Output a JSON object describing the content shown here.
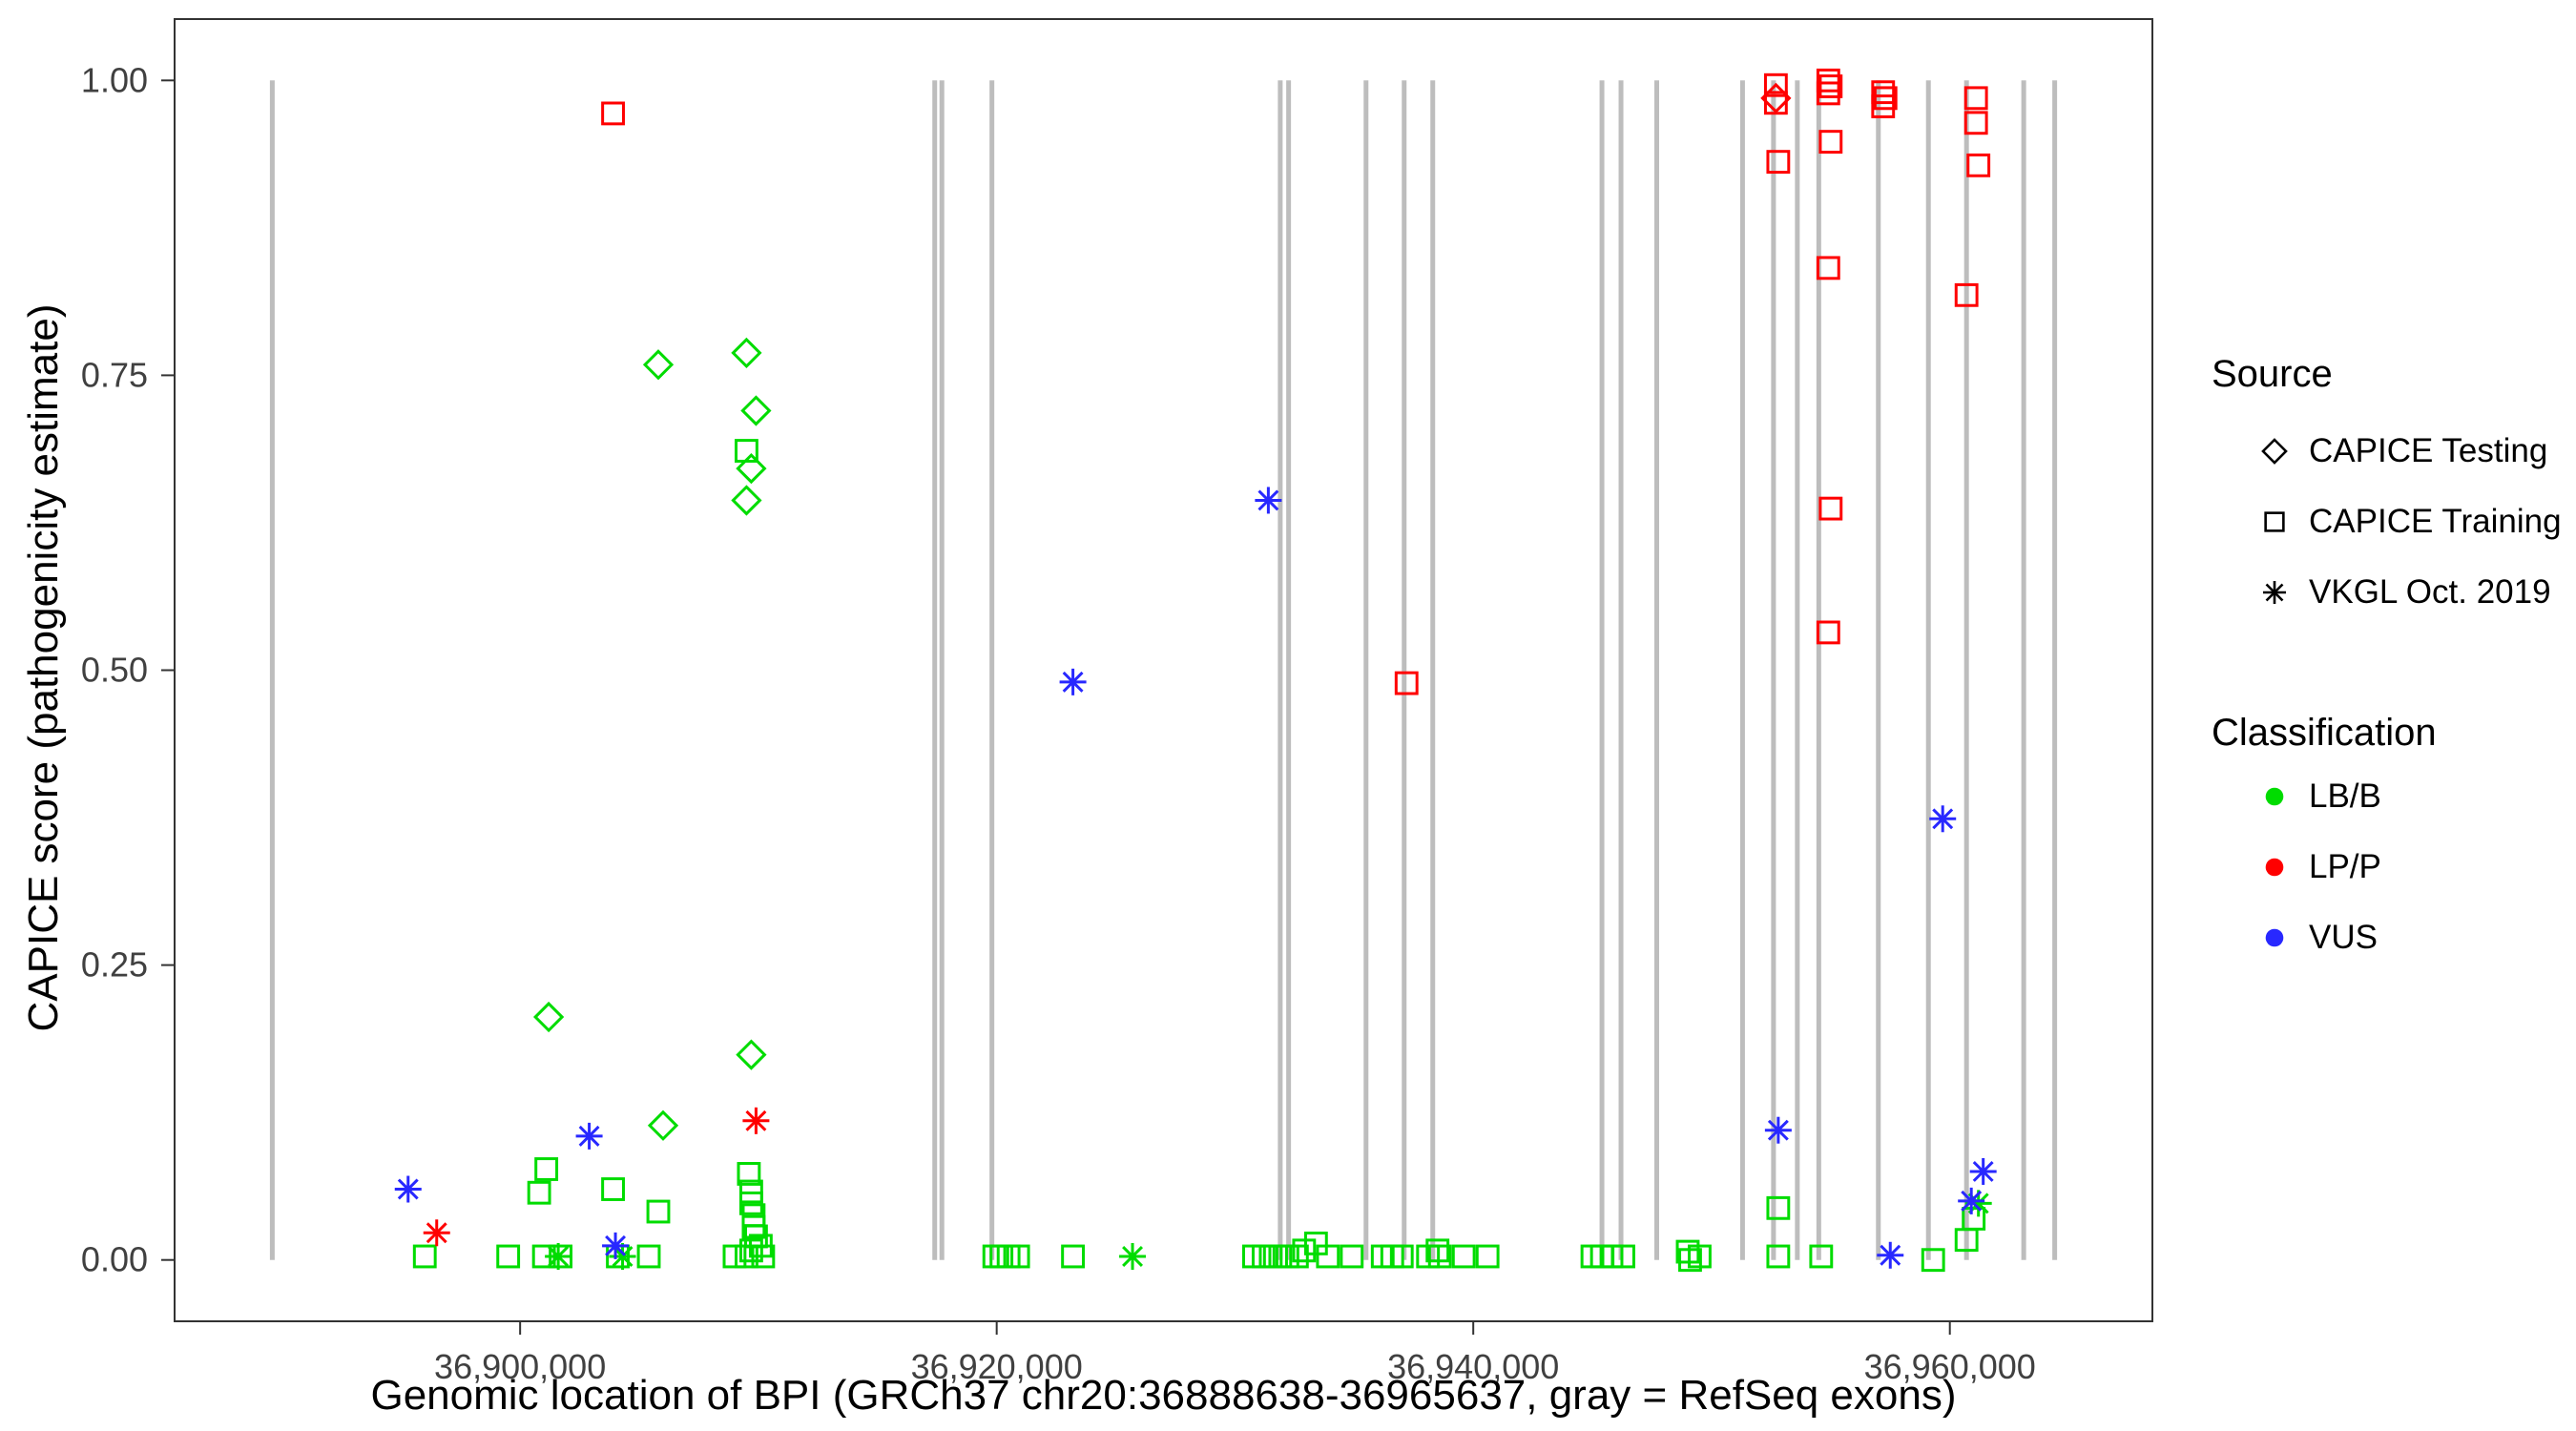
{
  "figure": {
    "background": "#FFFFFF"
  },
  "legend": {
    "source": {
      "title": "Source",
      "items": [
        {
          "label": "CAPICE Testing",
          "marker": "diamond"
        },
        {
          "label": "CAPICE Training",
          "marker": "square"
        },
        {
          "label": "VKGL Oct. 2019",
          "marker": "asterisk"
        }
      ]
    },
    "classification": {
      "title": "Classification",
      "items": [
        {
          "label": "LB/B",
          "color": "#00DC00"
        },
        {
          "label": "LP/P",
          "color": "#FF0000"
        },
        {
          "label": "VUS",
          "color": "#2828FF"
        }
      ]
    }
  },
  "chart_data": {
    "type": "scatter",
    "title": "",
    "xlabel": "Genomic location of BPI (GRCh37 chr20:36888638-36965637, gray = RefSeq exons)",
    "ylabel": "CAPICE score (pathogenicity estimate)",
    "xlim": [
      36885500,
      36968500
    ],
    "ylim": [
      -0.052,
      1.052
    ],
    "grid": false,
    "legend_position": "right",
    "x_ticks": [
      {
        "value": 36900000,
        "label": "36,900,000"
      },
      {
        "value": 36920000,
        "label": "36,920,000"
      },
      {
        "value": 36940000,
        "label": "36,940,000"
      },
      {
        "value": 36960000,
        "label": "36,960,000"
      }
    ],
    "y_ticks": [
      {
        "value": 0.0,
        "label": "0.00"
      },
      {
        "value": 0.25,
        "label": "0.25"
      },
      {
        "value": 0.5,
        "label": "0.50"
      },
      {
        "value": 0.75,
        "label": "0.75"
      },
      {
        "value": 1.0,
        "label": "1.00"
      }
    ],
    "exon_color": "#BDBDBD",
    "exon_lines_x": [
      36889600,
      36917400,
      36917700,
      36919800,
      36931900,
      36932250,
      36935500,
      36937100,
      36938300,
      36945400,
      36946200,
      36947700,
      36951300,
      36952600,
      36953600,
      36954500,
      36957000,
      36959100,
      36960700,
      36963100,
      36964400
    ],
    "series": [
      {
        "name": "CAPICE Testing - LB/B",
        "source": "CAPICE Testing",
        "classification": "LB/B",
        "marker": "diamond",
        "color": "#00DC00",
        "points": [
          [
            36905800,
            0.759
          ],
          [
            36909500,
            0.769
          ],
          [
            36909900,
            0.72
          ],
          [
            36909700,
            0.671
          ],
          [
            36909500,
            0.644
          ],
          [
            36901200,
            0.206
          ],
          [
            36909700,
            0.174
          ],
          [
            36906000,
            0.114
          ]
        ]
      },
      {
        "name": "CAPICE Testing - LP/P",
        "source": "CAPICE Testing",
        "classification": "LP/P",
        "marker": "diamond",
        "color": "#FF0000",
        "points": [
          [
            36952700,
            0.985
          ]
        ]
      },
      {
        "name": "CAPICE Training - LB/B",
        "source": "CAPICE Training",
        "classification": "LB/B",
        "marker": "square",
        "color": "#00DC00",
        "points": [
          [
            36909500,
            0.686
          ],
          [
            36901100,
            0.077
          ],
          [
            36900800,
            0.057
          ],
          [
            36903900,
            0.06
          ],
          [
            36905800,
            0.041
          ],
          [
            36909600,
            0.073
          ],
          [
            36909700,
            0.058
          ],
          [
            36909700,
            0.048
          ],
          [
            36909800,
            0.038
          ],
          [
            36909800,
            0.028
          ],
          [
            36909900,
            0.02
          ],
          [
            36909700,
            0.008
          ],
          [
            36910100,
            0.012
          ],
          [
            36896000,
            0.003
          ],
          [
            36899500,
            0.003
          ],
          [
            36901000,
            0.003
          ],
          [
            36901700,
            0.003
          ],
          [
            36904100,
            0.003
          ],
          [
            36905400,
            0.003
          ],
          [
            36909000,
            0.003
          ],
          [
            36909500,
            0.003
          ],
          [
            36910200,
            0.003
          ],
          [
            36919900,
            0.003
          ],
          [
            36920200,
            0.003
          ],
          [
            36920500,
            0.003
          ],
          [
            36920900,
            0.003
          ],
          [
            36923200,
            0.003
          ],
          [
            36930800,
            0.003
          ],
          [
            36931200,
            0.003
          ],
          [
            36931500,
            0.003
          ],
          [
            36931900,
            0.003
          ],
          [
            36932200,
            0.003
          ],
          [
            36932600,
            0.003
          ],
          [
            36932900,
            0.008
          ],
          [
            36933400,
            0.014
          ],
          [
            36933900,
            0.003
          ],
          [
            36934900,
            0.003
          ],
          [
            36936200,
            0.003
          ],
          [
            36936600,
            0.003
          ],
          [
            36937000,
            0.003
          ],
          [
            36938100,
            0.003
          ],
          [
            36938500,
            0.008
          ],
          [
            36938600,
            0.003
          ],
          [
            36939600,
            0.003
          ],
          [
            36940600,
            0.003
          ],
          [
            36945000,
            0.003
          ],
          [
            36945400,
            0.003
          ],
          [
            36945800,
            0.003
          ],
          [
            36946300,
            0.003
          ],
          [
            36949000,
            0.007
          ],
          [
            36949100,
            0.0
          ],
          [
            36949500,
            0.003
          ],
          [
            36952800,
            0.044
          ],
          [
            36952800,
            0.003
          ],
          [
            36954600,
            0.003
          ],
          [
            36959300,
            0.0
          ],
          [
            36960700,
            0.017
          ],
          [
            36961000,
            0.035
          ]
        ]
      },
      {
        "name": "CAPICE Training - LP/P",
        "source": "CAPICE Training",
        "classification": "LP/P",
        "marker": "square",
        "color": "#FF0000",
        "points": [
          [
            36903900,
            0.972
          ],
          [
            36937200,
            0.489
          ],
          [
            36952700,
            0.996
          ],
          [
            36952700,
            0.981
          ],
          [
            36952800,
            0.931
          ],
          [
            36954900,
            1.0
          ],
          [
            36955000,
            0.995
          ],
          [
            36954900,
            0.989
          ],
          [
            36955000,
            0.948
          ],
          [
            36954900,
            0.841
          ],
          [
            36955000,
            0.637
          ],
          [
            36954900,
            0.532
          ],
          [
            36957200,
            0.99
          ],
          [
            36957300,
            0.985
          ],
          [
            36957200,
            0.978
          ],
          [
            36961100,
            0.985
          ],
          [
            36961100,
            0.964
          ],
          [
            36961200,
            0.928
          ],
          [
            36960700,
            0.818
          ]
        ]
      },
      {
        "name": "VKGL Oct. 2019 - LB/B",
        "source": "VKGL Oct. 2019",
        "classification": "LB/B",
        "marker": "asterisk",
        "color": "#00DC00",
        "points": [
          [
            36901600,
            0.003
          ],
          [
            36904300,
            0.003
          ],
          [
            36925700,
            0.003
          ],
          [
            36961200,
            0.048
          ]
        ]
      },
      {
        "name": "VKGL Oct. 2019 - LP/P",
        "source": "VKGL Oct. 2019",
        "classification": "LP/P",
        "marker": "asterisk",
        "color": "#FF0000",
        "points": [
          [
            36896500,
            0.023
          ],
          [
            36909900,
            0.118
          ]
        ]
      },
      {
        "name": "VKGL Oct. 2019 - VUS",
        "source": "VKGL Oct. 2019",
        "classification": "VUS",
        "marker": "asterisk",
        "color": "#2828FF",
        "points": [
          [
            36895300,
            0.06
          ],
          [
            36902900,
            0.105
          ],
          [
            36904000,
            0.012
          ],
          [
            36923200,
            0.49
          ],
          [
            36931400,
            0.644
          ],
          [
            36952800,
            0.11
          ],
          [
            36957500,
            0.004
          ],
          [
            36959700,
            0.374
          ],
          [
            36960900,
            0.05
          ],
          [
            36961400,
            0.075
          ]
        ]
      }
    ]
  }
}
